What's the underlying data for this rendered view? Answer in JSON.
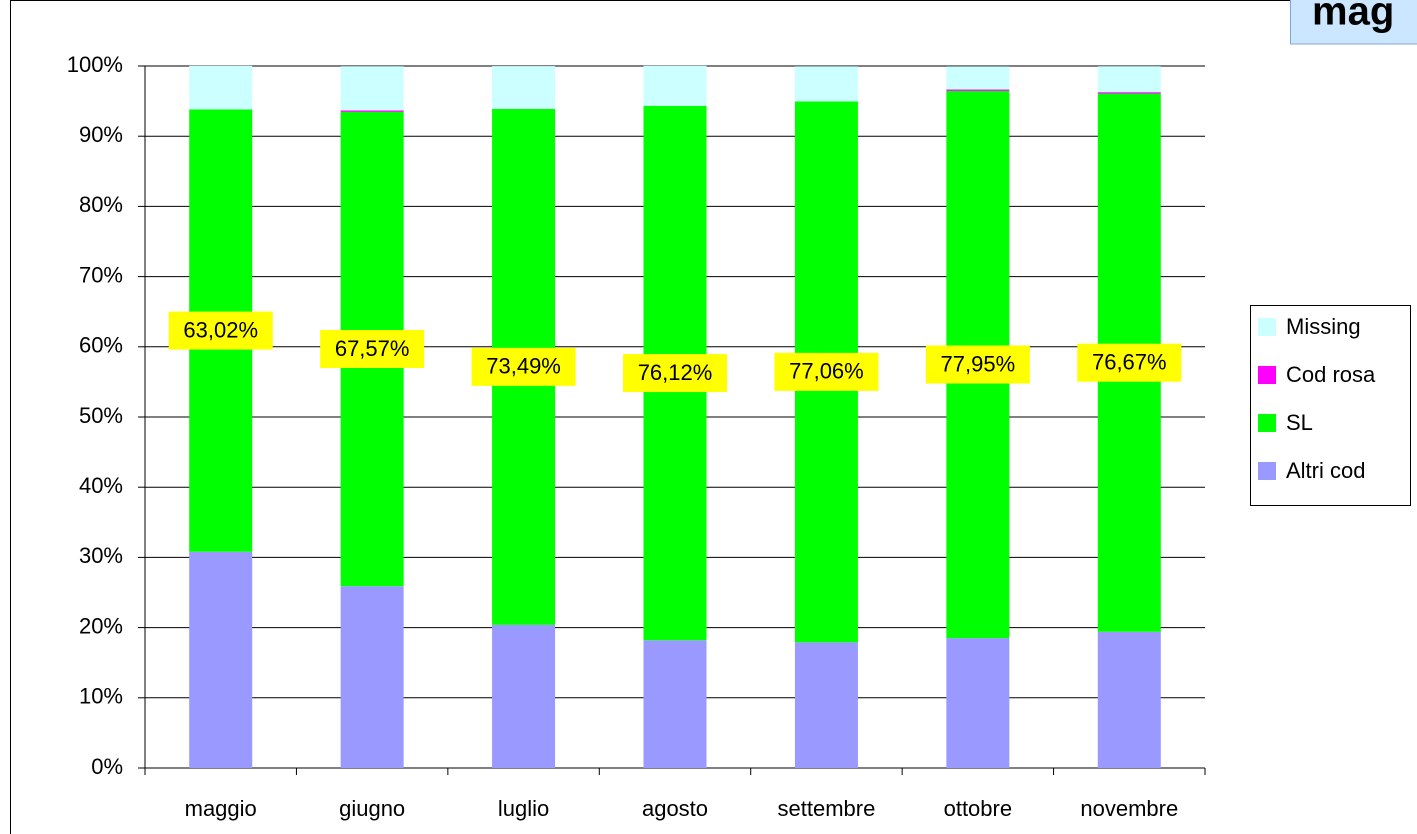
{
  "chart_data": {
    "type": "bar",
    "stacked": true,
    "title": "mag",
    "categories": [
      "maggio",
      "giugno",
      "luglio",
      "agosto",
      "settembre",
      "ottobre",
      "novembre"
    ],
    "series": [
      {
        "name": "Altri cod",
        "color": "#9999ff",
        "values": [
          30.8,
          25.9,
          20.4,
          18.2,
          17.9,
          18.5,
          19.4
        ]
      },
      {
        "name": "SL",
        "color": "#00ff00",
        "values": [
          63.02,
          67.57,
          73.49,
          76.12,
          77.06,
          77.95,
          76.67
        ],
        "value_labels": [
          "63,02%",
          "67,57%",
          "73,49%",
          "76,12%",
          "77,06%",
          "77,95%",
          "76,67%"
        ]
      },
      {
        "name": "Cod rosa",
        "color": "#ff00ff",
        "values": [
          0,
          0.2,
          0,
          0,
          0,
          0.2,
          0.2
        ]
      },
      {
        "name": "Missing",
        "color": "#ccffff",
        "values": [
          6.2,
          6.3,
          6.1,
          5.7,
          5.0,
          3.3,
          3.7
        ]
      }
    ],
    "ylim": [
      0,
      100
    ],
    "yticks": [
      {
        "value": 0,
        "label": "0%"
      },
      {
        "value": 10,
        "label": "10%"
      },
      {
        "value": 20,
        "label": "20%"
      },
      {
        "value": 30,
        "label": "30%"
      },
      {
        "value": 40,
        "label": "40%"
      },
      {
        "value": 50,
        "label": "50%"
      },
      {
        "value": 60,
        "label": "60%"
      },
      {
        "value": 70,
        "label": "70%"
      },
      {
        "value": 80,
        "label": "80%"
      },
      {
        "value": 90,
        "label": "90%"
      },
      {
        "value": 100,
        "label": "100%"
      }
    ],
    "grid": true,
    "legend": "right"
  }
}
